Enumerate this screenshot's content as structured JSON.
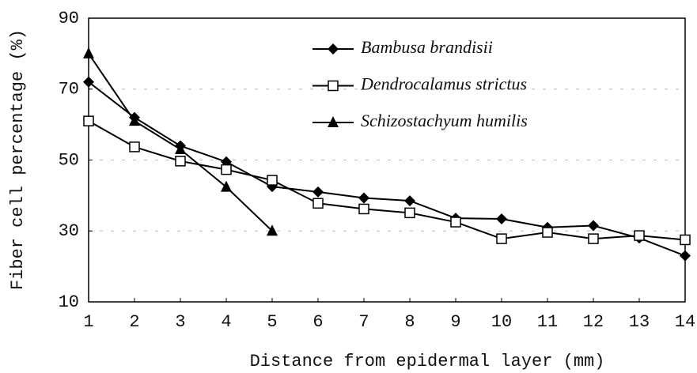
{
  "chart_data": {
    "type": "line",
    "ylabel": "Fiber cell percentage (%)",
    "xlabel": "Distance from epidermal layer (mm)",
    "x": [
      1,
      2,
      3,
      4,
      5,
      6,
      7,
      8,
      9,
      10,
      11,
      12,
      13,
      14
    ],
    "xlim": [
      1,
      14
    ],
    "xticks": [
      1,
      2,
      3,
      4,
      5,
      6,
      7,
      8,
      9,
      10,
      11,
      12,
      13,
      14
    ],
    "ylim": [
      10,
      90
    ],
    "yticks": [
      10,
      30,
      50,
      70,
      90
    ],
    "grid": true,
    "legend": "upper right",
    "series": [
      {
        "name": "Bambusa brandisii",
        "color": "#000000",
        "marker": "diamond",
        "values": [
          72,
          62,
          54,
          49.5,
          42.5,
          41,
          39.3,
          38.5,
          33.6,
          33.4,
          31,
          31.5,
          28,
          23
        ]
      },
      {
        "name": "Dendrocalamus strictus",
        "color": "#000000",
        "marker": "square",
        "values": [
          61,
          53.7,
          49.7,
          47.3,
          44.3,
          37.8,
          36.2,
          35.1,
          32.5,
          27.8,
          29.6,
          27.8,
          28.7,
          27.5
        ]
      },
      {
        "name": "Schizostachyum humilis",
        "color": "#000000",
        "marker": "triangle",
        "values": [
          80,
          61,
          53,
          42.4,
          30,
          null,
          null,
          null,
          null,
          null,
          null,
          null,
          null,
          null
        ]
      }
    ]
  }
}
